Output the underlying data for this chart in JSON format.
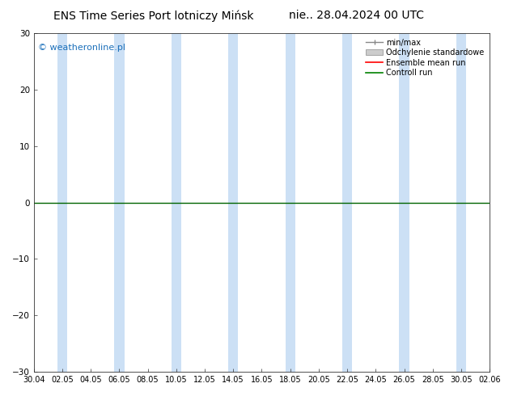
{
  "title_left": "ENS Time Series Port lotniczy Mińsk",
  "title_right": "nie.. 28.04.2024 00 UTC",
  "ylim": [
    -30,
    30
  ],
  "yticks": [
    -30,
    -20,
    -10,
    0,
    10,
    20,
    30
  ],
  "x_labels": [
    "30.04",
    "02.05",
    "04.05",
    "06.05",
    "08.05",
    "10.05",
    "12.05",
    "14.05",
    "16.05",
    "18.05",
    "20.05",
    "22.05",
    "24.05",
    "26.05",
    "28.05",
    "30.05",
    "02.06"
  ],
  "watermark": "© weatheronline.pl",
  "legend_entries": [
    "min/max",
    "Odchylenie standardowe",
    "Ensemble mean run",
    "Controll run"
  ],
  "legend_colors": [
    "#aaaaaa",
    "#cccccc",
    "#ff0000",
    "#008000"
  ],
  "background_color": "#ffffff",
  "plot_bg_color": "#ffffff",
  "stripe_color": "#cce0f5",
  "zero_line_color": "#006400",
  "title_fontsize": 10,
  "watermark_color": "#1a6fba",
  "watermark_fontsize": 8,
  "tick_fontsize": 7.5
}
